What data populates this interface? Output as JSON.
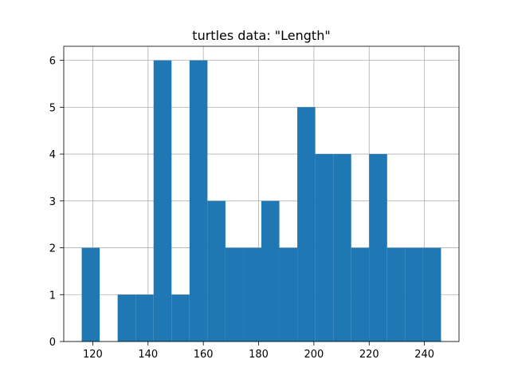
{
  "chart_data": {
    "type": "bar",
    "title": "turtles data: \"Length\"",
    "xlabel": "",
    "ylabel": "",
    "xlim": [
      109.5,
      252.5
    ],
    "ylim": [
      0,
      6.3
    ],
    "xticks": [
      120,
      140,
      160,
      180,
      200,
      220,
      240
    ],
    "yticks": [
      0,
      1,
      2,
      3,
      4,
      5,
      6
    ],
    "grid": true,
    "bar_color": "#1f77b4",
    "bins": [
      {
        "x0": 116.0,
        "x1": 122.5,
        "value": 2
      },
      {
        "x0": 122.5,
        "x1": 129.0,
        "value": 0
      },
      {
        "x0": 129.0,
        "x1": 135.5,
        "value": 1
      },
      {
        "x0": 135.5,
        "x1": 142.0,
        "value": 1
      },
      {
        "x0": 142.0,
        "x1": 148.5,
        "value": 6
      },
      {
        "x0": 148.5,
        "x1": 155.0,
        "value": 1
      },
      {
        "x0": 155.0,
        "x1": 161.5,
        "value": 6
      },
      {
        "x0": 161.5,
        "x1": 168.0,
        "value": 3
      },
      {
        "x0": 168.0,
        "x1": 174.5,
        "value": 2
      },
      {
        "x0": 174.5,
        "x1": 181.0,
        "value": 2
      },
      {
        "x0": 181.0,
        "x1": 187.5,
        "value": 3
      },
      {
        "x0": 187.5,
        "x1": 194.0,
        "value": 2
      },
      {
        "x0": 194.0,
        "x1": 200.5,
        "value": 5
      },
      {
        "x0": 200.5,
        "x1": 207.0,
        "value": 4
      },
      {
        "x0": 207.0,
        "x1": 213.5,
        "value": 4
      },
      {
        "x0": 213.5,
        "x1": 220.0,
        "value": 2
      },
      {
        "x0": 220.0,
        "x1": 226.5,
        "value": 4
      },
      {
        "x0": 226.5,
        "x1": 233.0,
        "value": 2
      },
      {
        "x0": 233.0,
        "x1": 239.5,
        "value": 2
      },
      {
        "x0": 239.5,
        "x1": 246.0,
        "value": 2
      }
    ]
  }
}
